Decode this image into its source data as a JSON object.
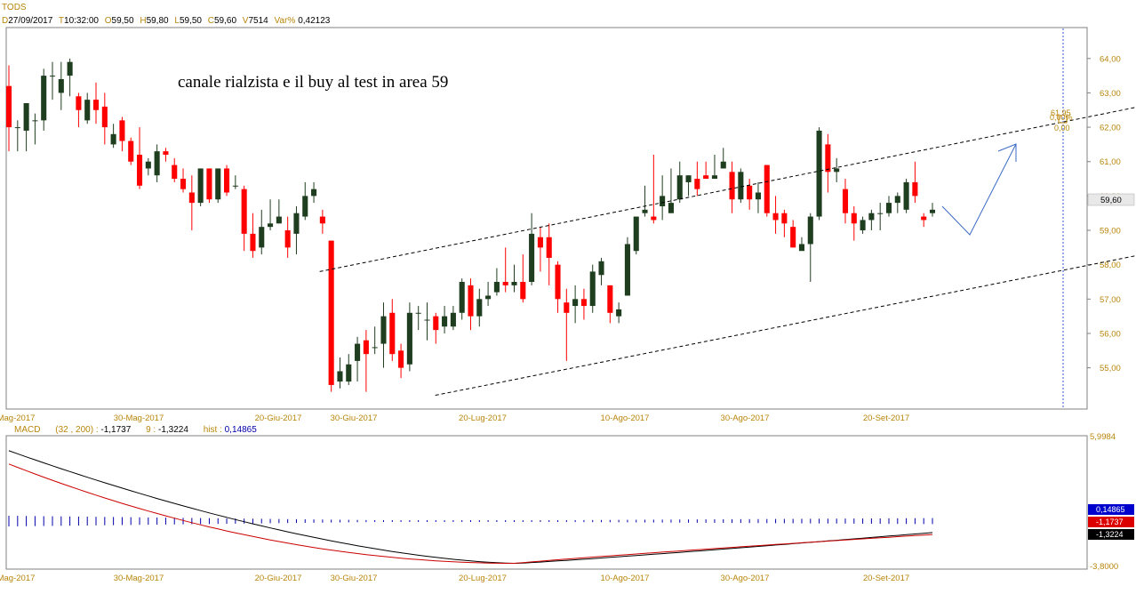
{
  "header": {
    "symbol": "TODS",
    "d_label": "D",
    "date": "27/09/2017",
    "t_label": "T",
    "time": "10:32:00",
    "o_label": "O",
    "open": "59,50",
    "h_label": "H",
    "high": "59,80",
    "l_label": "L",
    "low": "59,50",
    "c_label": "C",
    "close": "59,60",
    "v_label": "V",
    "volume": "7514",
    "var_label": "Var%",
    "var": "0,42123"
  },
  "annotation": "canale rialzista e il buy al test in area 59",
  "last_price_tag": "59,60",
  "fib_labels": [
    "61,95",
    "0,00%",
    "0,00"
  ],
  "macd_header": {
    "name": "MACD",
    "params": "(32 , 200)",
    "macd_value": "-1,1737",
    "signal_period": "9",
    "signal_value": "-1,3224",
    "hist_label": "hist",
    "hist_value": "0,14865"
  },
  "macd_tags": {
    "hist": "0,14865",
    "macd": "-1,1737",
    "signal": "-1,3224"
  },
  "macd_axis": {
    "top": "5,9984",
    "bottom": "-3,8000"
  },
  "colors": {
    "up": "#1f3d1f",
    "down": "#ff0000",
    "axis_text": "#b8860b",
    "macd_line": "#000000",
    "signal_line": "#cc0000",
    "hist": "#0000aa",
    "arrow": "#3a6bc4"
  },
  "chart_data": {
    "type": "candlestick",
    "y_ticks": [
      "64,00",
      "63,00",
      "62,00",
      "61,00",
      "60,00",
      "59,00",
      "58,00",
      "57,00",
      "56,00",
      "55,00"
    ],
    "ylim": [
      53.8,
      64.9
    ],
    "x_ticks": [
      "Mag-2017",
      "30-Mag-2017",
      "20-Giu-2017",
      "30-Giu-2017",
      "20-Lug-2017",
      "10-Ago-2017",
      "30-Ago-2017",
      "20-Set-2017"
    ],
    "candles": [
      [
        63.2,
        62.0,
        63.8,
        61.3
      ],
      [
        62.0,
        62.0,
        62.2,
        61.3
      ],
      [
        61.9,
        62.7,
        62.7,
        61.3
      ],
      [
        62.2,
        62.2,
        62.4,
        61.5
      ],
      [
        62.2,
        63.5,
        63.7,
        61.9
      ],
      [
        63.5,
        63.5,
        63.9,
        62.8
      ],
      [
        63.0,
        63.4,
        63.9,
        62.5
      ],
      [
        63.5,
        63.9,
        64.0,
        62.9
      ],
      [
        62.9,
        62.5,
        63.0,
        62.0
      ],
      [
        62.2,
        62.8,
        63.0,
        62.1
      ],
      [
        62.8,
        62.5,
        63.3,
        62.1
      ],
      [
        62.6,
        62.0,
        63.0,
        61.5
      ],
      [
        61.5,
        61.8,
        62.1,
        61.4
      ],
      [
        62.2,
        61.6,
        62.3,
        61.3
      ],
      [
        61.6,
        61.0,
        61.7,
        60.9
      ],
      [
        61.2,
        60.3,
        62.0,
        60.2
      ],
      [
        60.8,
        61.0,
        61.1,
        60.6
      ],
      [
        60.6,
        61.3,
        61.5,
        60.4
      ],
      [
        61.3,
        61.2,
        61.4,
        61.0
      ],
      [
        60.9,
        60.5,
        61.1,
        60.4
      ],
      [
        60.5,
        60.2,
        60.8,
        60.1
      ],
      [
        60.1,
        59.8,
        60.6,
        59.0
      ],
      [
        59.8,
        60.8,
        60.8,
        59.7
      ],
      [
        60.8,
        59.9,
        60.8,
        59.8
      ],
      [
        59.9,
        60.8,
        60.8,
        59.8
      ],
      [
        60.8,
        60.1,
        60.9,
        60.0
      ],
      [
        60.3,
        60.3,
        60.6,
        60.2
      ],
      [
        60.2,
        58.9,
        60.3,
        58.4
      ],
      [
        58.9,
        58.4,
        59.5,
        58.2
      ],
      [
        58.5,
        59.1,
        59.6,
        58.3
      ],
      [
        59.1,
        59.2,
        59.9,
        59.0
      ],
      [
        59.2,
        59.4,
        59.9,
        59.2
      ],
      [
        59.0,
        58.5,
        59.4,
        58.2
      ],
      [
        58.9,
        59.5,
        59.7,
        58.3
      ],
      [
        59.4,
        60.0,
        60.4,
        59.3
      ],
      [
        60.0,
        60.2,
        60.4,
        59.8
      ],
      [
        59.4,
        59.2,
        59.6,
        58.9
      ],
      [
        58.7,
        54.5,
        58.7,
        54.3
      ],
      [
        54.6,
        54.9,
        55.3,
        54.4
      ],
      [
        54.6,
        55.1,
        55.4,
        54.5
      ],
      [
        55.2,
        55.7,
        55.9,
        54.6
      ],
      [
        55.8,
        55.4,
        56.1,
        54.3
      ],
      [
        55.6,
        55.6,
        56.2,
        55.4
      ],
      [
        55.7,
        56.5,
        56.9,
        55.0
      ],
      [
        56.6,
        55.4,
        57.0,
        55.2
      ],
      [
        55.5,
        55.0,
        55.7,
        54.7
      ],
      [
        55.1,
        56.6,
        56.9,
        54.9
      ],
      [
        56.6,
        56.6,
        56.8,
        56.1
      ],
      [
        56.4,
        56.4,
        56.9,
        55.8
      ],
      [
        56.5,
        56.1,
        56.6,
        55.7
      ],
      [
        56.2,
        56.5,
        56.8,
        56.0
      ],
      [
        56.2,
        56.6,
        56.8,
        56.1
      ],
      [
        56.6,
        57.5,
        57.6,
        56.4
      ],
      [
        57.4,
        56.5,
        57.6,
        56.1
      ],
      [
        56.5,
        57.0,
        57.3,
        56.2
      ],
      [
        57.0,
        57.1,
        57.5,
        56.8
      ],
      [
        57.2,
        57.5,
        57.9,
        57.1
      ],
      [
        57.5,
        57.4,
        58.5,
        57.2
      ],
      [
        57.4,
        57.5,
        58.0,
        57.2
      ],
      [
        57.5,
        57.0,
        58.3,
        56.9
      ],
      [
        57.5,
        58.9,
        59.5,
        57.4
      ],
      [
        58.8,
        58.5,
        59.1,
        57.8
      ],
      [
        58.8,
        58.2,
        59.2,
        57.4
      ],
      [
        58.0,
        57.0,
        58.1,
        56.6
      ],
      [
        56.9,
        56.6,
        57.3,
        55.2
      ],
      [
        56.8,
        57.0,
        57.4,
        56.3
      ],
      [
        57.0,
        56.8,
        57.3,
        56.4
      ],
      [
        56.8,
        57.8,
        58.0,
        56.6
      ],
      [
        57.7,
        58.1,
        58.2,
        57.4
      ],
      [
        57.4,
        56.6,
        57.4,
        56.3
      ],
      [
        56.5,
        56.7,
        56.9,
        56.3
      ],
      [
        57.1,
        58.6,
        58.8,
        57.1
      ],
      [
        58.4,
        59.4,
        59.4,
        58.3
      ],
      [
        59.5,
        59.6,
        60.3,
        59.4
      ],
      [
        59.4,
        59.3,
        61.2,
        59.2
      ],
      [
        59.7,
        60.0,
        60.6,
        59.3
      ],
      [
        59.5,
        59.8,
        60.8,
        59.5
      ],
      [
        59.9,
        60.6,
        61.0,
        59.8
      ],
      [
        60.4,
        60.6,
        60.6,
        60.0
      ],
      [
        60.5,
        60.2,
        61.0,
        60.0
      ],
      [
        60.6,
        60.5,
        61.0,
        60.5
      ],
      [
        60.5,
        60.6,
        61.2,
        60.5
      ],
      [
        60.8,
        61.0,
        61.4,
        60.8
      ],
      [
        60.7,
        59.9,
        61.0,
        59.5
      ],
      [
        59.9,
        60.7,
        60.8,
        59.8
      ],
      [
        60.3,
        59.9,
        60.5,
        59.6
      ],
      [
        59.9,
        60.1,
        60.4,
        59.5
      ],
      [
        60.9,
        59.5,
        60.9,
        59.4
      ],
      [
        59.5,
        59.3,
        60.0,
        58.9
      ],
      [
        59.5,
        59.2,
        59.6,
        58.8
      ],
      [
        59.1,
        58.5,
        59.3,
        58.5
      ],
      [
        58.4,
        58.6,
        58.8,
        58.5
      ],
      [
        58.6,
        59.4,
        59.5,
        57.5
      ],
      [
        59.4,
        61.9,
        62.0,
        59.3
      ],
      [
        61.5,
        60.7,
        61.8,
        60.1
      ],
      [
        60.7,
        60.8,
        61.1,
        60.4
      ],
      [
        60.2,
        59.5,
        60.5,
        59.2
      ],
      [
        59.5,
        59.2,
        59.7,
        58.7
      ],
      [
        59.0,
        59.3,
        59.4,
        58.9
      ],
      [
        59.3,
        59.5,
        59.6,
        59.0
      ],
      [
        59.5,
        59.5,
        59.8,
        59.0
      ],
      [
        59.5,
        59.8,
        60.0,
        59.4
      ],
      [
        59.8,
        60.0,
        60.1,
        59.5
      ],
      [
        59.6,
        60.4,
        60.5,
        59.5
      ],
      [
        60.4,
        60.0,
        61.0,
        59.8
      ],
      [
        59.4,
        59.3,
        59.5,
        59.1
      ],
      [
        59.5,
        59.6,
        59.8,
        59.4
      ]
    ],
    "channel_upper": [
      [
        0.29,
        57.8
      ],
      [
        1.08,
        62.8
      ]
    ],
    "channel_lower": [
      [
        0.397,
        54.2
      ],
      [
        1.195,
        59.2
      ]
    ],
    "macd": {
      "ylim": [
        -3.8,
        5.9984
      ],
      "macd_start": 5.0,
      "macd_min": -3.5,
      "macd_end": -1.1737,
      "signal_start": 4.0,
      "signal_end": -1.3224
    }
  }
}
